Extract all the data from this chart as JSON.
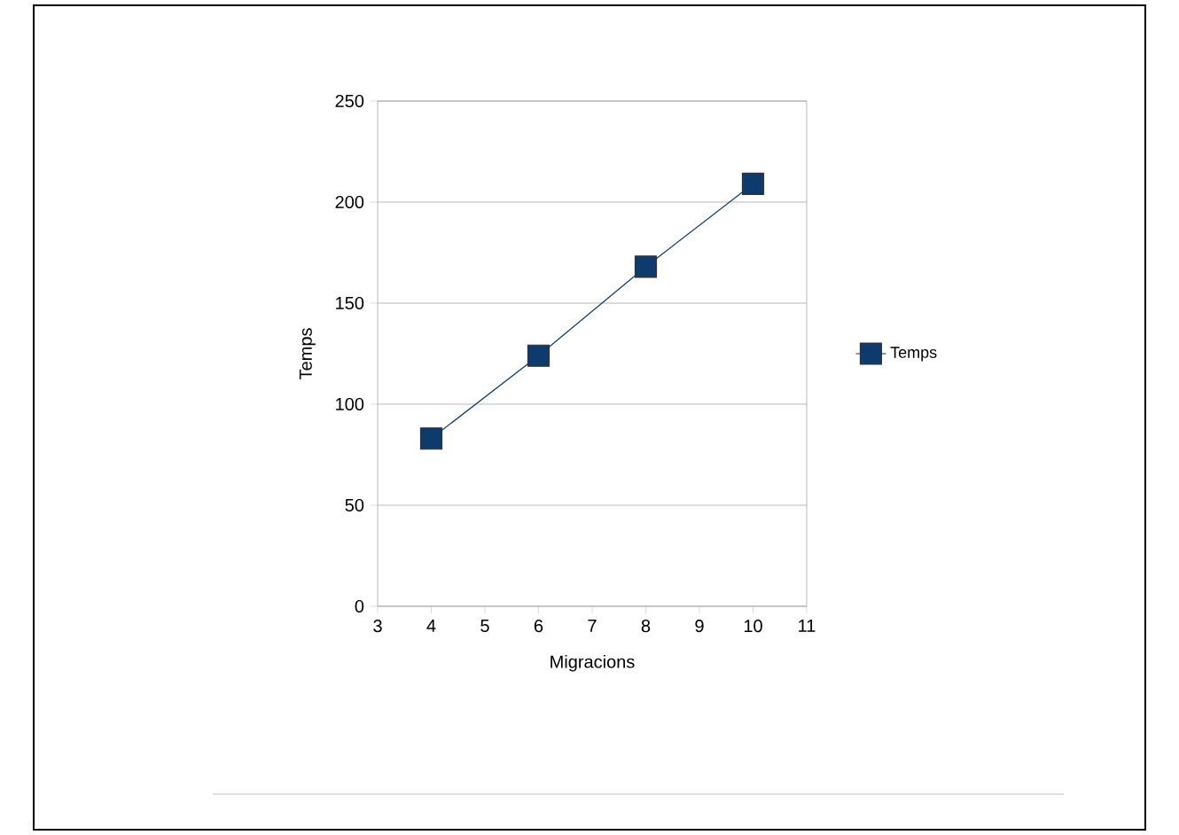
{
  "chart_data": {
    "type": "line",
    "xlabel": "Migracions",
    "ylabel": "Temps",
    "x": [
      4,
      6,
      8,
      10
    ],
    "series": [
      {
        "name": "Temps",
        "color": "#0d3b6e",
        "values": [
          83,
          124,
          168,
          209
        ]
      }
    ],
    "xlim": [
      3,
      11
    ],
    "xticks": [
      3,
      4,
      5,
      6,
      7,
      8,
      9,
      10,
      11
    ],
    "ylim": [
      0,
      250
    ],
    "yticks": [
      0,
      50,
      100,
      150,
      200,
      250
    ],
    "grid": "y",
    "legend": "right",
    "marker": "square",
    "line_style": "solid"
  }
}
